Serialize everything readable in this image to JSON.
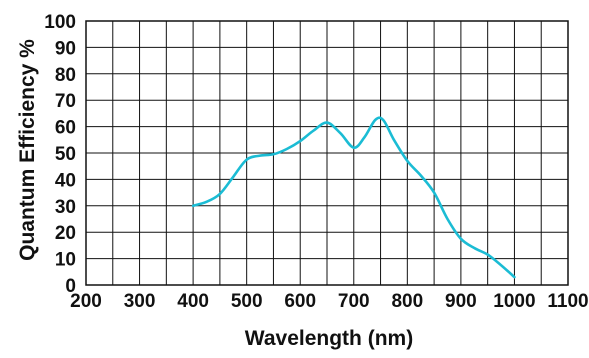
{
  "chart_data": {
    "type": "line",
    "xlabel": "Wavelength (nm)",
    "ylabel": "Quantum Efficiency  %",
    "xlim": [
      200,
      1100
    ],
    "ylim": [
      0,
      100
    ],
    "x_ticks": [
      200,
      300,
      400,
      500,
      600,
      700,
      800,
      900,
      1000,
      1100
    ],
    "y_ticks": [
      0,
      10,
      20,
      30,
      40,
      50,
      60,
      70,
      80,
      90,
      100
    ],
    "grid": true,
    "series": [
      {
        "color": "#1bbcd4",
        "points": [
          [
            400,
            30
          ],
          [
            425,
            31.5
          ],
          [
            450,
            34.5
          ],
          [
            475,
            41
          ],
          [
            500,
            47.5
          ],
          [
            525,
            49
          ],
          [
            550,
            49.5
          ],
          [
            575,
            51.5
          ],
          [
            600,
            54.5
          ],
          [
            625,
            58.5
          ],
          [
            650,
            61.5
          ],
          [
            675,
            57.5
          ],
          [
            700,
            52
          ],
          [
            720,
            56
          ],
          [
            740,
            62.5
          ],
          [
            755,
            62.5
          ],
          [
            775,
            55
          ],
          [
            800,
            47
          ],
          [
            825,
            41.5
          ],
          [
            850,
            35
          ],
          [
            875,
            25
          ],
          [
            900,
            17.5
          ],
          [
            925,
            14
          ],
          [
            950,
            11.5
          ],
          [
            975,
            7.5
          ],
          [
            1000,
            3
          ]
        ]
      }
    ]
  }
}
